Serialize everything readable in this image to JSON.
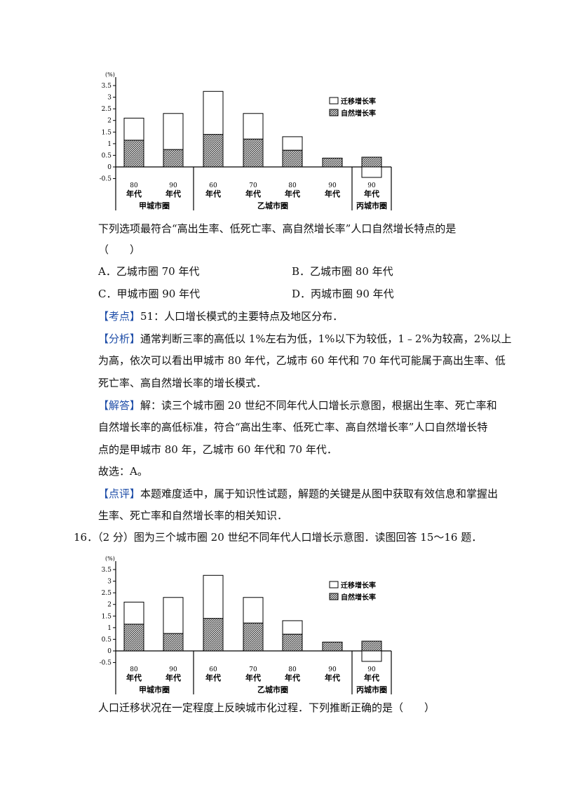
{
  "chart_data": [
    {
      "type": "bar",
      "stacked": true,
      "y_unit": "(%)",
      "ylim": [
        -0.5,
        3.5
      ],
      "yticks": [
        "3.5",
        "3",
        "2.5",
        "2",
        "1.5",
        "1",
        "0.5",
        "0",
        "-0.5"
      ],
      "categories": [
        "80\n年代",
        "90\n年代",
        "60\n年代",
        "70\n年代",
        "80\n年代",
        "90\n年代",
        "90\n年代"
      ],
      "groups": [
        {
          "label": "甲城市圈",
          "categories": [
            0,
            1
          ]
        },
        {
          "label": "乙城市圈",
          "categories": [
            2,
            3,
            4,
            5
          ]
        },
        {
          "label": "丙城市圈",
          "categories": [
            6
          ]
        }
      ],
      "series": [
        {
          "name": "自然增长率",
          "values": [
            1.15,
            0.75,
            1.4,
            1.2,
            0.72,
            0.38,
            0.42
          ]
        },
        {
          "name": "迁移增长率",
          "values": [
            0.95,
            1.55,
            1.85,
            1.1,
            0.58,
            0.0,
            -0.45
          ]
        }
      ],
      "legend": [
        "迁移增长率",
        "自然增长率"
      ]
    },
    {
      "type": "bar",
      "stacked": true,
      "y_unit": "(%)",
      "ylim": [
        -0.5,
        3.5
      ],
      "yticks": [
        "3.5",
        "3",
        "2.5",
        "2",
        "1.5",
        "1",
        "0.5",
        "0",
        "-0.5"
      ],
      "categories": [
        "80\n年代",
        "90\n年代",
        "60\n年代",
        "70\n年代",
        "80\n年代",
        "90\n年代",
        "90\n年代"
      ],
      "groups": [
        {
          "label": "甲城市圈",
          "categories": [
            0,
            1
          ]
        },
        {
          "label": "乙城市圈",
          "categories": [
            2,
            3,
            4,
            5
          ]
        },
        {
          "label": "丙城市圈",
          "categories": [
            6
          ]
        }
      ],
      "series": [
        {
          "name": "自然增长率",
          "values": [
            1.15,
            0.75,
            1.4,
            1.2,
            0.72,
            0.38,
            0.42
          ]
        },
        {
          "name": "迁移增长率",
          "values": [
            0.95,
            1.55,
            1.85,
            1.1,
            0.58,
            0.0,
            -0.45
          ]
        }
      ],
      "legend": [
        "迁移增长率",
        "自然增长率"
      ]
    }
  ],
  "q15": {
    "stem": "下列选项最符合“高出生率、低死亡率、高自然增长率”人口自然增长特点的是",
    "paren": "（　　）",
    "options": {
      "A": "A．乙城市圈 70 年代",
      "B": "B．乙城市圈 80 年代",
      "C": "C．甲城市圈 90 年代",
      "D": "D．丙城市圈 90 年代"
    },
    "kaodian_tag": "【考点】",
    "kaodian": "51：人口增长模式的主要特点及地区分布．",
    "fenxi_tag": "【分析】",
    "fenxi_1": "通常判断三率的高低以 1%左右为低，1%以下为较低，1﹣2%为较高，2%以上",
    "fenxi_2": "为高，依次可以看出甲城市 80 年代，乙城市 60 年代和 70 年代可能属于高出生率、低",
    "fenxi_3": "死亡率、高自然增长率的增长模式．",
    "jieda_tag": "【解答】",
    "jieda_1": "解：读三个城市圈 20 世纪不同年代人口增长示意图，根据出生率、死亡率和",
    "jieda_2": "自然增长率的高低标准，符合“高出生率、低死亡率、高自然增长率”人口自然增长特",
    "jieda_3": "点的是甲城市 80 年，乙城市 60 年代和 70 年代．",
    "answer": "故选：A。",
    "dianping_tag": "【点评】",
    "dianping_1": "本题难度适中，属于知识性试题，解题的关键是从图中获取有效信息和掌握出",
    "dianping_2": "生率、死亡率和自然增长率的相关知识．"
  },
  "q16": {
    "header": "16．（2 分）图为三个城市圈 20 世纪不同年代人口增长示意图．读图回答 15～16 题．",
    "stem": "人口迁移状况在一定程度上反映城市化过程．下列推断正确的是（　　）"
  }
}
